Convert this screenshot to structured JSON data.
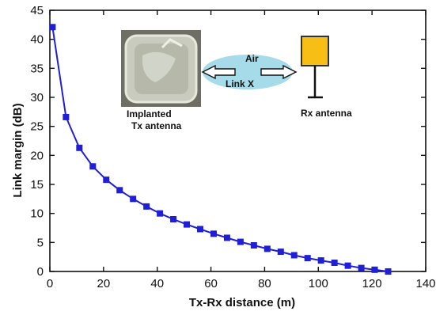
{
  "chart_data": {
    "type": "line",
    "title": "",
    "xlabel": "Tx-Rx distance (m)",
    "ylabel": "Link margin (dB)",
    "xlim": [
      0,
      140
    ],
    "ylim": [
      0,
      45
    ],
    "xticks": [
      0,
      20,
      40,
      60,
      80,
      100,
      120,
      140
    ],
    "yticks": [
      0,
      5,
      10,
      15,
      20,
      25,
      30,
      35,
      40,
      45
    ],
    "grid": false,
    "legend": "none",
    "series": [
      {
        "color": "#1f1fd8",
        "marker": "square",
        "x": [
          1,
          6,
          11,
          16,
          21,
          26,
          31,
          36,
          41,
          46,
          51,
          56,
          61,
          66,
          71,
          76,
          81,
          86,
          91,
          96,
          101,
          106,
          111,
          116,
          121,
          126
        ],
        "y": [
          42.1,
          26.6,
          21.3,
          18.1,
          15.8,
          14.0,
          12.5,
          11.2,
          10.0,
          9.0,
          8.1,
          7.3,
          6.5,
          5.8,
          5.1,
          4.5,
          3.9,
          3.4,
          2.8,
          2.3,
          1.9,
          1.5,
          1.0,
          0.6,
          0.3,
          0.0
        ]
      }
    ],
    "annotations": {
      "tx_label_1": "Implanted",
      "tx_label_2": "Tx antenna",
      "medium": "Air",
      "link": "Link X",
      "rx_label": "Rx antenna"
    }
  }
}
